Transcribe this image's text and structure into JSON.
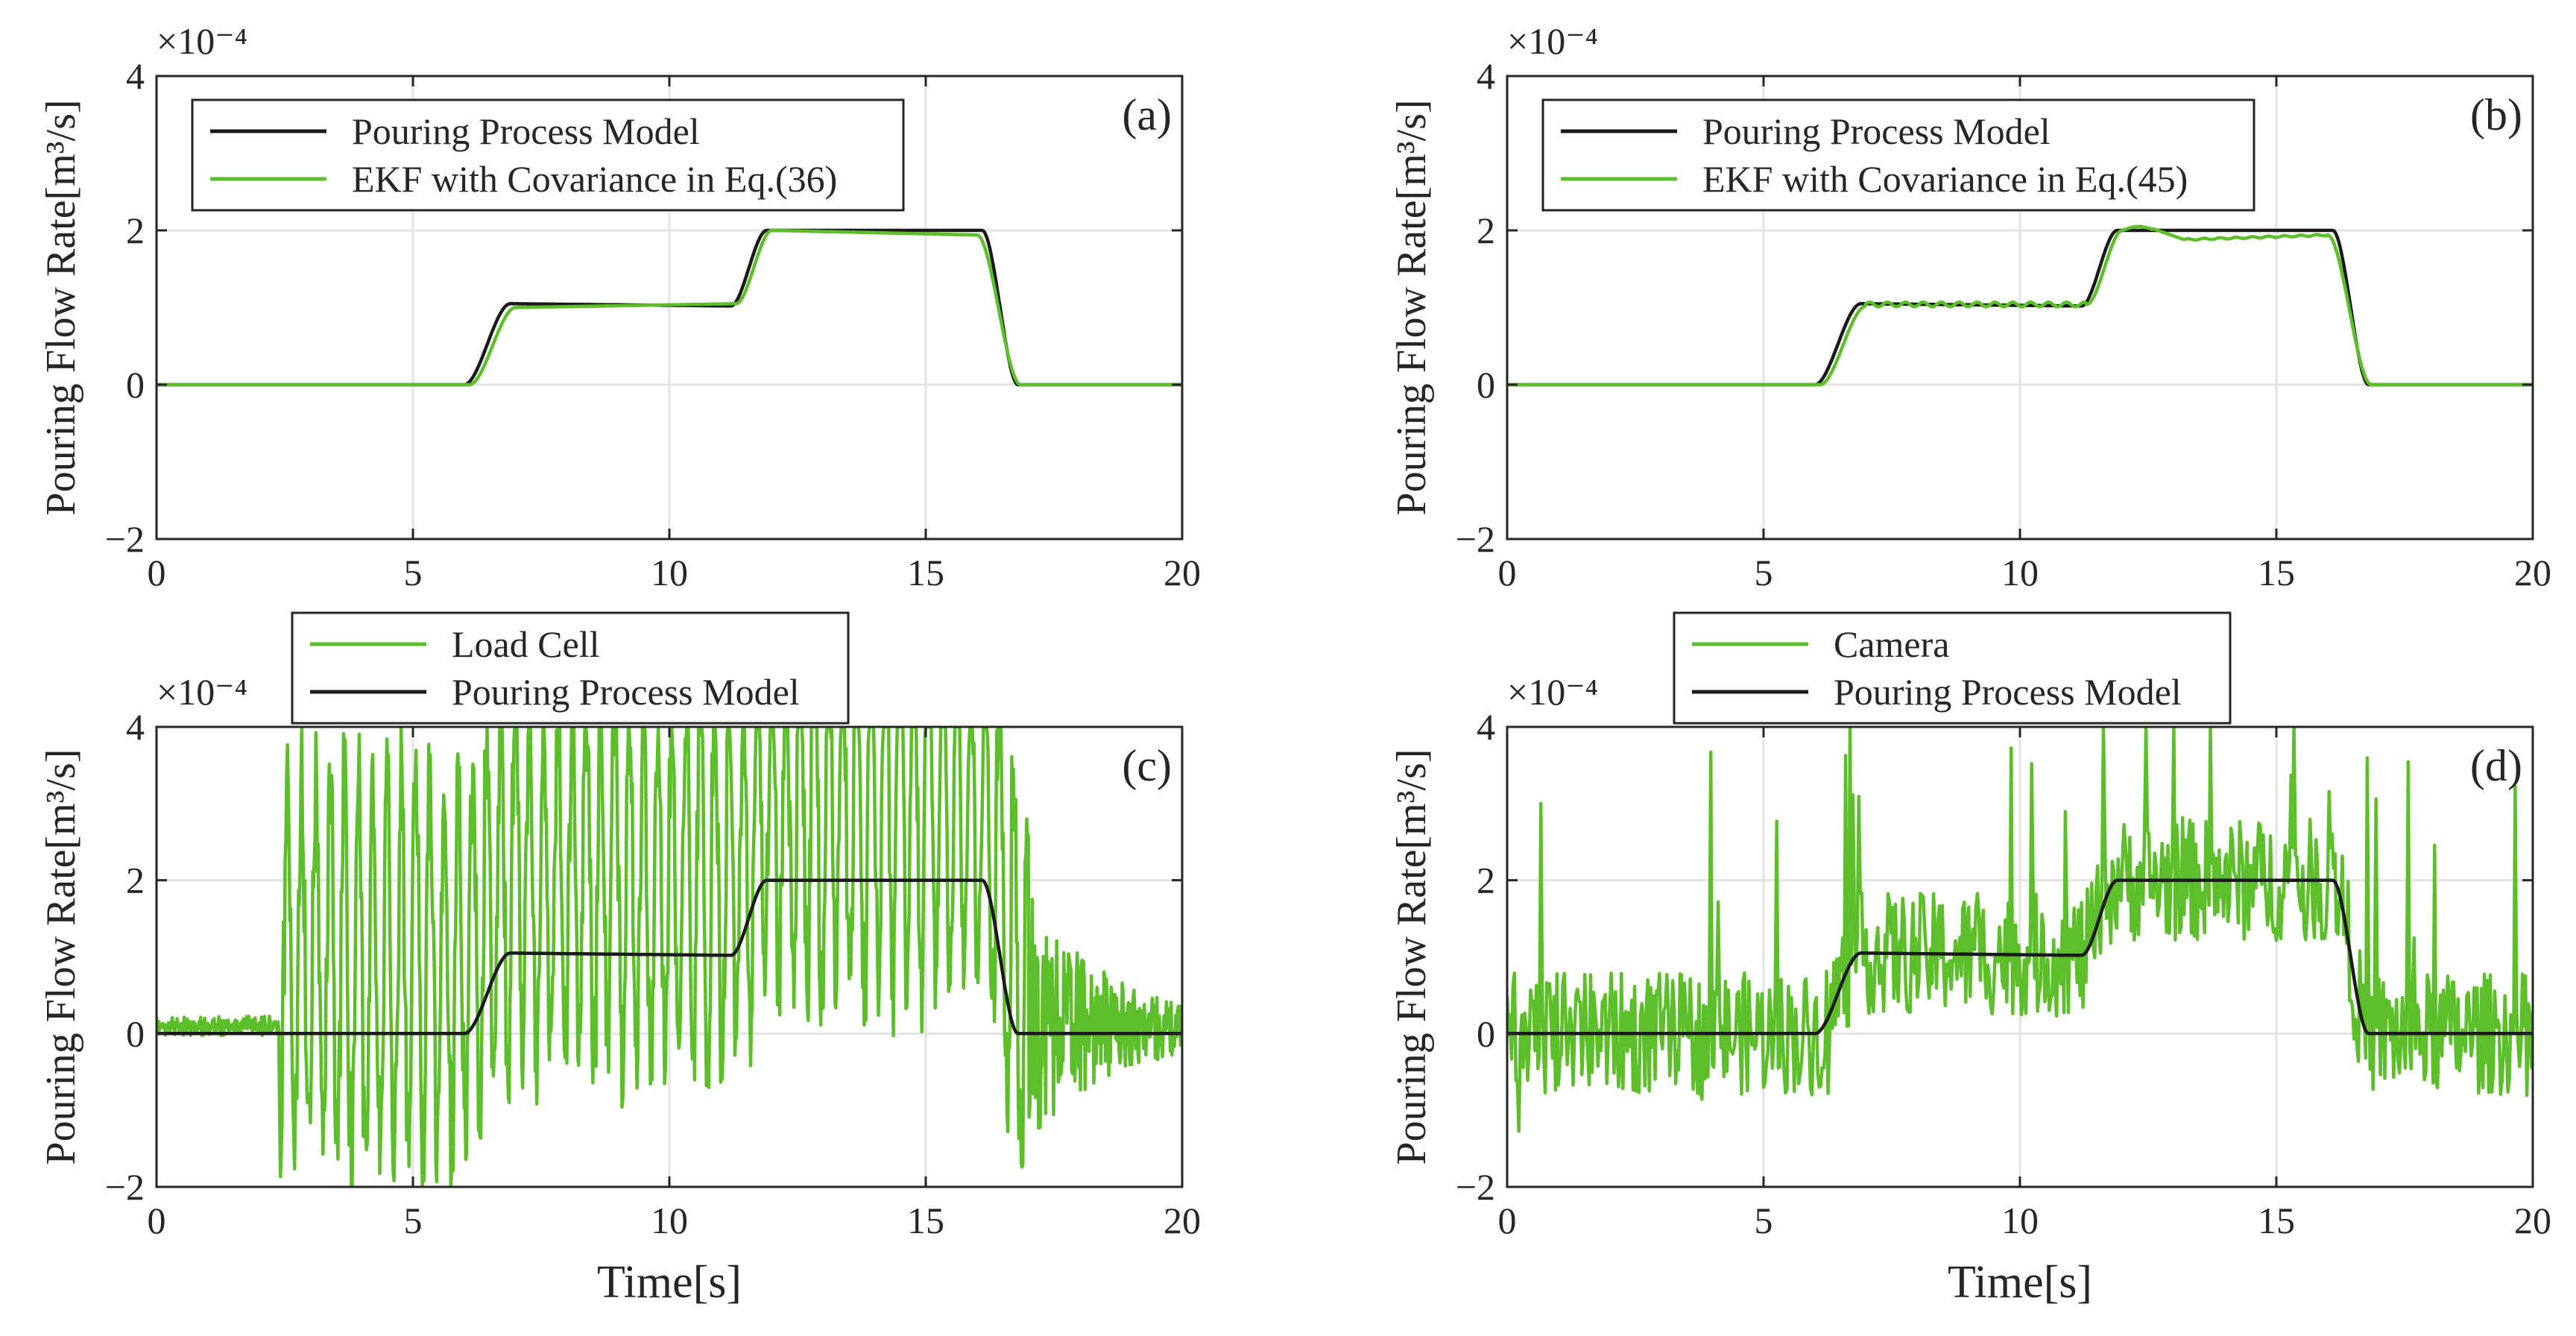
{
  "figure": {
    "shared_ylabel": "Pouring Flow Rate[m³/s]",
    "shared_xlabel": "Time[s]",
    "y_exponent": "×10⁻⁴",
    "colors": {
      "model": "#1a1a1a",
      "green": "#5cbf2a",
      "grid": "#e3e3e3",
      "axis": "#262626"
    }
  },
  "chart_data": [
    {
      "type": "line",
      "panel_label": "(a)",
      "xlabel": "",
      "ylabel": "Pouring Flow Rate[m³/s]",
      "xlim": [
        0,
        20
      ],
      "ylim": [
        -2,
        4
      ],
      "xticks": [
        0,
        5,
        10,
        15,
        20
      ],
      "yticks": [
        -2,
        0,
        2,
        4
      ],
      "y_multiplier": "×10⁻⁴",
      "grid": true,
      "legend_position": "top-left",
      "series": [
        {
          "name": "Pouring Process Model",
          "color": "#1a1a1a",
          "profile": "model"
        },
        {
          "name": "EKF with Covariance in Eq.(36)",
          "color": "#5cbf2a",
          "profile": "ekf36"
        }
      ],
      "profile_points": {
        "x": [
          0,
          6,
          6.9,
          11.2,
          11.9,
          16.1,
          16.8,
          20
        ],
        "y": [
          0,
          0,
          1.05,
          1.02,
          2.0,
          2.0,
          0,
          0
        ]
      }
    },
    {
      "type": "line",
      "panel_label": "(b)",
      "xlabel": "",
      "ylabel": "Pouring Flow Rate[m³/s]",
      "xlim": [
        0,
        20
      ],
      "ylim": [
        -2,
        4
      ],
      "xticks": [
        0,
        5,
        10,
        15,
        20
      ],
      "yticks": [
        -2,
        0,
        2,
        4
      ],
      "y_multiplier": "×10⁻⁴",
      "grid": true,
      "legend_position": "top-left",
      "series": [
        {
          "name": "Pouring Process Model",
          "color": "#1a1a1a",
          "profile": "model"
        },
        {
          "name": "EKF with Covariance in Eq.(45)",
          "color": "#5cbf2a",
          "profile": "ekf45"
        }
      ],
      "profile_points": {
        "x": [
          0,
          6,
          6.9,
          11.2,
          11.9,
          12.3,
          13.0,
          16.1,
          16.8,
          20
        ],
        "y": [
          0,
          0,
          1.05,
          1.02,
          2.0,
          2.05,
          1.88,
          1.95,
          0,
          0
        ]
      }
    },
    {
      "type": "line",
      "panel_label": "(c)",
      "xlabel": "Time[s]",
      "ylabel": "Pouring Flow Rate[m³/s]",
      "xlim": [
        0,
        20
      ],
      "ylim": [
        -2,
        4
      ],
      "xticks": [
        0,
        5,
        10,
        15,
        20
      ],
      "yticks": [
        -2,
        0,
        2,
        4
      ],
      "y_multiplier": "×10⁻⁴",
      "grid": true,
      "legend_position": "above plot, left",
      "series": [
        {
          "name": "Load Cell",
          "color": "#5cbf2a",
          "profile": "loadcell"
        },
        {
          "name": "Pouring Process Model",
          "color": "#1a1a1a",
          "profile": "model"
        }
      ],
      "noise_description": {
        "x_noise_start": 2.4,
        "before_start_level": 0.1,
        "typical_range": [
          -2,
          4
        ],
        "decay_after": 17.0
      }
    },
    {
      "type": "line",
      "panel_label": "(d)",
      "xlabel": "Time[s]",
      "ylabel": "Pouring Flow Rate[m³/s]",
      "xlim": [
        0,
        20
      ],
      "ylim": [
        -2,
        4
      ],
      "xticks": [
        0,
        5,
        10,
        15,
        20
      ],
      "yticks": [
        -2,
        0,
        2,
        4
      ],
      "y_multiplier": "×10⁻⁴",
      "grid": true,
      "legend_position": "above plot, left",
      "series": [
        {
          "name": "Camera",
          "color": "#5cbf2a",
          "profile": "camera"
        },
        {
          "name": "Pouring Process Model",
          "color": "#1a1a1a",
          "profile": "model"
        }
      ],
      "noise_description": {
        "typical_amplitude": 0.9,
        "spike_max": 4,
        "spike_min": -2
      }
    }
  ]
}
